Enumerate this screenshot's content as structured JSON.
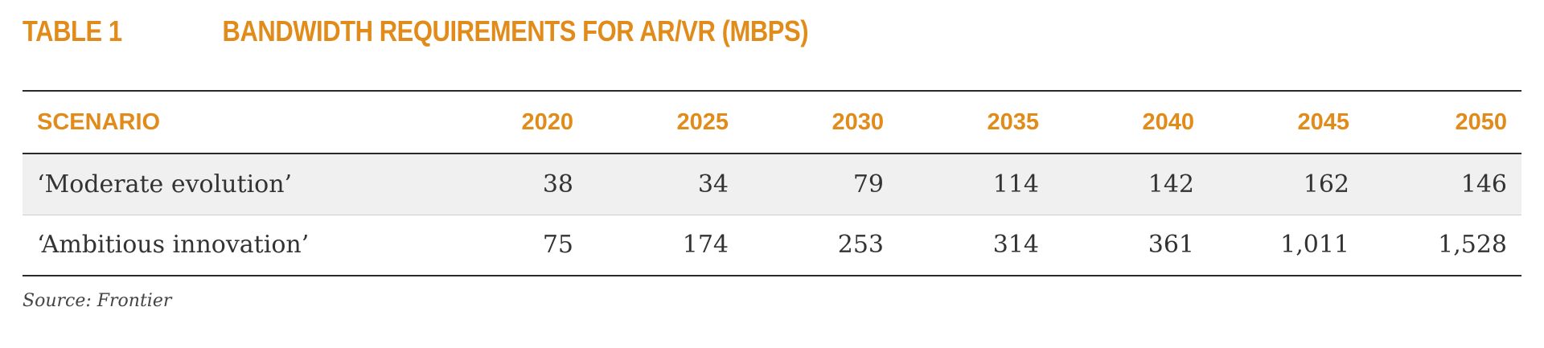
{
  "header": {
    "label": "TABLE 1",
    "title": "BANDWIDTH REQUIREMENTS FOR AR/VR (MBPS)"
  },
  "table": {
    "columns": [
      "SCENARIO",
      "2020",
      "2025",
      "2030",
      "2035",
      "2040",
      "2045",
      "2050"
    ],
    "rows": [
      {
        "scenario": "‘Moderate evolution’",
        "values": [
          "38",
          "34",
          "79",
          "114",
          "142",
          "162",
          "146"
        ]
      },
      {
        "scenario": "‘Ambitious innovation’",
        "values": [
          "75",
          "174",
          "253",
          "314",
          "361",
          "1,011",
          "1,528"
        ]
      }
    ]
  },
  "footer": {
    "source": "Source: Frontier"
  },
  "colors": {
    "accent": "#e08b1a",
    "row_shade": "#f0f0f0",
    "rule": "#2a2a2a"
  }
}
